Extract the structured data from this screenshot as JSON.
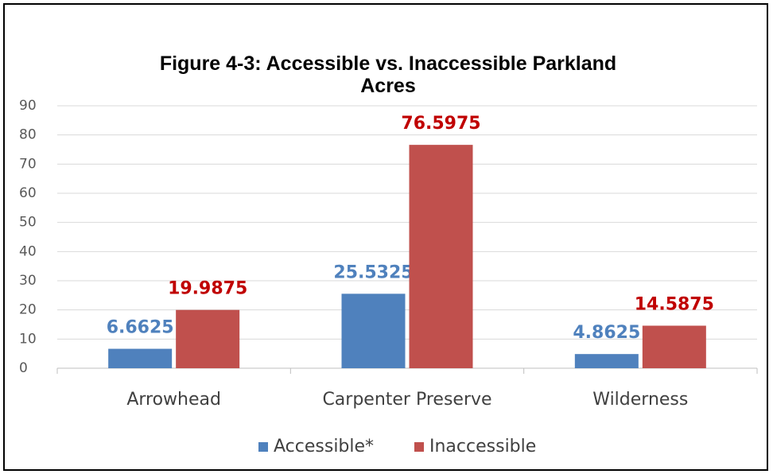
{
  "chart_data": {
    "type": "bar",
    "title": "Figure 4-3: Accessible vs. Inaccessible Parkland Acres",
    "categories": [
      "Arrowhead",
      "Carpenter Preserve",
      "Wilderness"
    ],
    "series": [
      {
        "name": "Accessible*",
        "color": "#4f81bd",
        "label_color": "#4f81bd",
        "values": [
          6.6625,
          25.5325,
          4.8625
        ]
      },
      {
        "name": "Inaccessible",
        "color": "#c0504d",
        "label_color": "#c00000",
        "values": [
          19.9875,
          76.5975,
          14.5875
        ]
      }
    ],
    "ylim": [
      0,
      90
    ],
    "yticks": [
      0,
      10,
      20,
      30,
      40,
      50,
      60,
      70,
      80,
      90
    ],
    "grid": true,
    "legend": "bottom"
  }
}
